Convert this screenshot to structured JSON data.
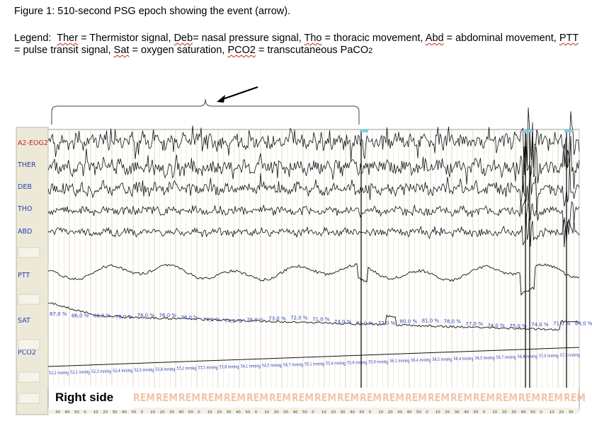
{
  "figure": {
    "caption": "Figure 1: 510-second PSG epoch showing the event (arrow).",
    "legend": {
      "prefix": "Legend:",
      "items": [
        {
          "abbr": "Ther",
          "text": " = Thermistor signal, "
        },
        {
          "abbr": "Deb",
          "text": "= nasal pressure signal, "
        },
        {
          "abbr": "Tho",
          "text": " = thoracic movement, "
        },
        {
          "abbr": "Abd",
          "text": " = abdominal movement, "
        },
        {
          "abbr": "PTT",
          "text": " = pulse transit signal, "
        },
        {
          "abbr": "Sat",
          "text": " = oxygen saturation, "
        },
        {
          "abbr": "PCO2",
          "text": " = transcutaneous PaCO"
        }
      ],
      "subscript": "2"
    }
  },
  "channels": [
    {
      "label": "A2-EOG2",
      "color": "#cc2222"
    },
    {
      "label": "THER",
      "color": "#2b3fb0"
    },
    {
      "label": "DEB",
      "color": "#2b3fb0"
    },
    {
      "label": "THO",
      "color": "#2b3fb0"
    },
    {
      "label": "ABD",
      "color": "#2b3fb0"
    },
    {
      "label": "PTT",
      "color": "#2b3fb0"
    },
    {
      "label": "SAT",
      "color": "#2b3fb0"
    },
    {
      "label": "PCO2",
      "color": "#2b3fb0"
    }
  ],
  "sat_values": [
    "87,0 %",
    "86,0 %",
    "83,0 %",
    "78,0 %",
    "76,0 %",
    "76,0 %",
    "76,0 %",
    "74,0 %",
    "74,0 %",
    "75,0 %",
    "73,0 %",
    "72,0 %",
    "71,0 %",
    "74,0 %",
    "72,0 %",
    "72,0 %",
    "80,0 %",
    "81,0 %",
    "78,0 %",
    "77,0 %",
    "74,0 %",
    "75,0 %",
    "74,0 %",
    "71,0 %",
    "84,0 %"
  ],
  "pco2_values": [
    "52,2 mmHg",
    "52,2 mmHg",
    "52,3 mmHg",
    "52,4 mmHg",
    "52,5 mmHg",
    "52,8 mmHg",
    "53,2 mmHg",
    "53,5 mmHg",
    "53,8 mmHg",
    "54,1 mmHg",
    "54,5 mmHg",
    "54,7 mmHg",
    "55,1 mmHg",
    "55,4 mmHg",
    "55,6 mmHg",
    "55,9 mmHg",
    "56,1 mmHg",
    "56,4 mmHg",
    "56,5 mmHg",
    "56,4 mmHg",
    "56,5 mmHg",
    "56,7 mmHg",
    "56,8 mmHg",
    "57,0 mmHg",
    "57,3 mmHg"
  ],
  "stage_label": "REM",
  "time_ticks": [
    "30",
    "40",
    "50",
    "0",
    "10",
    "20",
    "30",
    "40",
    "50",
    "0",
    "10",
    "20",
    "30",
    "40",
    "50",
    "0",
    "10",
    "20",
    "30",
    "40",
    "50",
    "0",
    "10",
    "20",
    "30",
    "40",
    "50",
    "0",
    "10",
    "20",
    "30",
    "40",
    "50",
    "0",
    "10",
    "20",
    "30",
    "40",
    "50",
    "0",
    "10",
    "20",
    "30",
    "40",
    "50",
    "0",
    "10",
    "20",
    "30",
    "40",
    "50",
    "0",
    "10",
    "20",
    "30"
  ],
  "overlay_label": "Right side",
  "colors": {
    "label": "#2b3fb0",
    "eog_label": "#cc2222",
    "stage": "#f2c4a8",
    "panel_bg": "#ece9d8"
  }
}
